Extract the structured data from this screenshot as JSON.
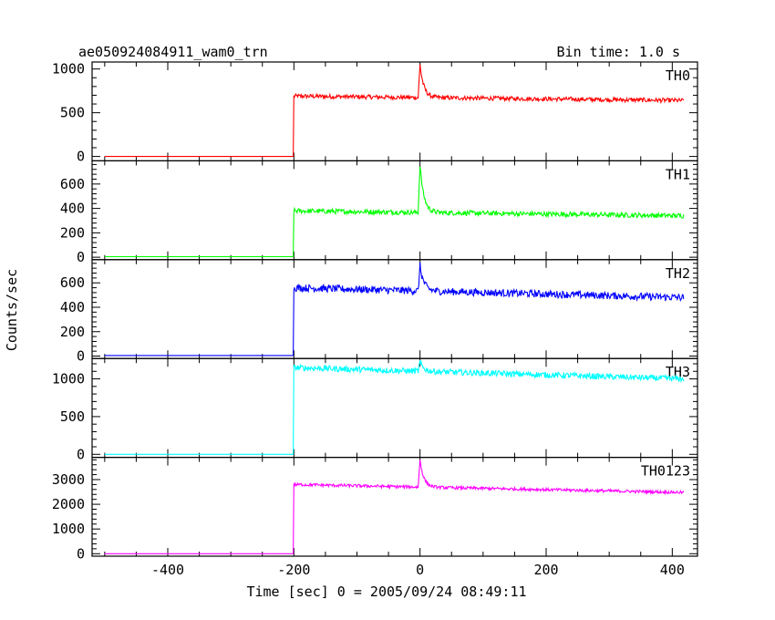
{
  "header": {
    "title": "ae050924084911_wam0_trn",
    "bin_time": "Bin time: 1.0 s"
  },
  "chart_data": {
    "type": "line",
    "title": "ae050924084911_wam0_trn",
    "xlabel": "Time [sec] 0 = 2005/09/24 08:49:11",
    "ylabel": "Counts/sec",
    "xlim": [
      -520,
      440
    ],
    "x_ticks": [
      -400,
      -200,
      0,
      200,
      400
    ],
    "x_range": [
      -500,
      418
    ],
    "trigger_rise_x": -200,
    "panels": [
      {
        "name": "TH0",
        "color": "#ff0000",
        "ylim": [
          -50,
          1080
        ],
        "y_ticks": [
          0,
          500,
          1000
        ],
        "pre_level": 0,
        "post_start": 690,
        "post_end": 640,
        "noise": 25,
        "peak_x": 0,
        "peak_y": 1050
      },
      {
        "name": "TH1",
        "color": "#00ff00",
        "ylim": [
          -20,
          790
        ],
        "y_ticks": [
          0,
          200,
          400,
          600
        ],
        "pre_level": 5,
        "post_start": 380,
        "post_end": 340,
        "noise": 20,
        "peak_x": 0,
        "peak_y": 760
      },
      {
        "name": "TH2",
        "color": "#0000ff",
        "ylim": [
          -20,
          790
        ],
        "y_ticks": [
          0,
          200,
          400,
          600
        ],
        "pre_level": 5,
        "post_start": 560,
        "post_end": 480,
        "noise": 30,
        "peak_x": 0,
        "peak_y": 740
      },
      {
        "name": "TH3",
        "color": "#00ffff",
        "ylim": [
          -40,
          1270
        ],
        "y_ticks": [
          0,
          500,
          1000
        ],
        "pre_level": 0,
        "post_start": 1150,
        "post_end": 1000,
        "noise": 40,
        "peak_x": 0,
        "peak_y": 1220
      },
      {
        "name": "TH0123",
        "color": "#ff00ff",
        "ylim": [
          -100,
          3900
        ],
        "y_ticks": [
          0,
          1000,
          2000,
          3000
        ],
        "pre_level": 0,
        "post_start": 2800,
        "post_end": 2480,
        "noise": 60,
        "peak_x": 0,
        "peak_y": 3800
      }
    ]
  }
}
